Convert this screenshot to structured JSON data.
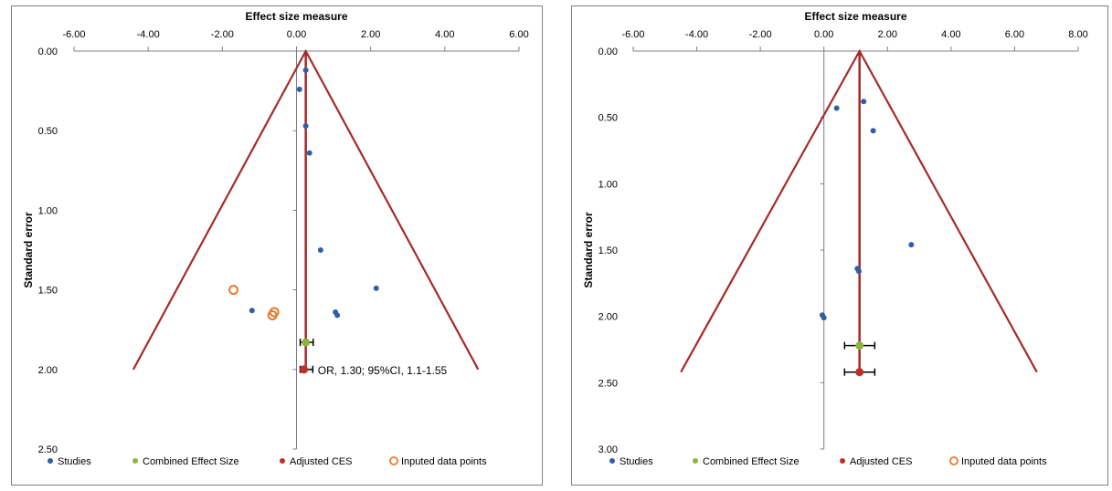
{
  "charts": [
    {
      "chart_data": {
        "type": "scatter",
        "title": "Effect size measure",
        "xlabel": "Effect size measure",
        "ylabel": "Standard error",
        "xlim": [
          -6,
          6
        ],
        "ylim": [
          0,
          2.5
        ],
        "y_reversed": true,
        "x_ticks": [
          "-6.00",
          "-4.00",
          "-2.00",
          "0.00",
          "2.00",
          "4.00",
          "6.00"
        ],
        "x_tick_values": [
          -6,
          -4,
          -2,
          0,
          2,
          4,
          6
        ],
        "y_ticks": [
          "0.00",
          "0.50",
          "1.00",
          "1.50",
          "2.00",
          "2.50"
        ],
        "y_tick_values": [
          0,
          0.5,
          1,
          1.5,
          2,
          2.5
        ],
        "series": [
          {
            "name": "Studies",
            "color": "#2e5fa8",
            "marker": "filled-circle",
            "points": [
              [
                0.25,
                0.12
              ],
              [
                0.08,
                0.24
              ],
              [
                0.25,
                0.47
              ],
              [
                0.35,
                0.64
              ],
              [
                0.65,
                1.25
              ],
              [
                2.15,
                1.49
              ],
              [
                1.05,
                1.64
              ],
              [
                1.1,
                1.66
              ],
              [
                -1.2,
                1.63
              ]
            ]
          },
          {
            "name": "Combined Effect Size",
            "color": "#8db53c",
            "marker": "filled-circle",
            "points": [
              [
                0.25,
                1.83
              ]
            ],
            "ci": [
              [
                0.1,
                0.45
              ]
            ]
          },
          {
            "name": "Adjusted CES",
            "color": "#c0302b",
            "marker": "filled-circle",
            "points": [
              [
                0.2,
                2.0
              ]
            ],
            "ci": [
              [
                0.1,
                0.44
              ]
            ]
          },
          {
            "name": "Inputed data points",
            "color": "#e8792b",
            "marker": "open-circle",
            "points": [
              [
                -1.7,
                1.5
              ],
              [
                -0.6,
                1.64
              ],
              [
                -0.65,
                1.66
              ]
            ]
          }
        ],
        "funnel": {
          "apex": [
            0.25,
            0
          ],
          "base_left": [
            -4.4,
            2.0
          ],
          "base_right": [
            4.9,
            2.0
          ],
          "color": "#a62a2a"
        },
        "vertical_line": {
          "x": 0.25,
          "from": 0,
          "to": 2.0,
          "color": "#a62a2a"
        },
        "legend": [
          "Studies",
          "Combined Effect Size",
          "Adjusted CES",
          "Inputed data points"
        ],
        "legend_position": "bottom",
        "annotation": {
          "text": "OR, 1.30; 95%CI, 1.1-1.55",
          "x": 0.5,
          "y": 2.0
        }
      }
    },
    {
      "chart_data": {
        "type": "scatter",
        "title": "Effect size measure",
        "xlabel": "Effect size measure",
        "ylabel": "Standard error",
        "xlim": [
          -6,
          8
        ],
        "ylim": [
          0,
          3
        ],
        "y_reversed": true,
        "x_ticks": [
          "-6.00",
          "-4.00",
          "-2.00",
          "0.00",
          "2.00",
          "4.00",
          "6.00",
          "8.00"
        ],
        "x_tick_values": [
          -6,
          -4,
          -2,
          0,
          2,
          4,
          6,
          8
        ],
        "y_ticks": [
          "0.00",
          "0.50",
          "1.00",
          "1.50",
          "2.00",
          "2.50",
          "3.00"
        ],
        "y_tick_values": [
          0,
          0.5,
          1,
          1.5,
          2,
          2.5,
          3
        ],
        "series": [
          {
            "name": "Studies",
            "color": "#2e5fa8",
            "marker": "filled-circle",
            "points": [
              [
                1.25,
                0.38
              ],
              [
                0.4,
                0.43
              ],
              [
                1.55,
                0.6
              ],
              [
                2.75,
                1.46
              ],
              [
                1.05,
                1.64
              ],
              [
                1.1,
                1.66
              ],
              [
                -0.05,
                1.99
              ],
              [
                0.0,
                2.01
              ]
            ]
          },
          {
            "name": "Combined Effect Size",
            "color": "#8db53c",
            "marker": "filled-circle",
            "points": [
              [
                1.12,
                2.22
              ]
            ],
            "ci": [
              [
                0.65,
                1.6
              ]
            ]
          },
          {
            "name": "Adjusted CES",
            "color": "#c0302b",
            "marker": "filled-circle",
            "points": [
              [
                1.12,
                2.42
              ]
            ],
            "ci": [
              [
                0.65,
                1.6
              ]
            ]
          },
          {
            "name": "Inputed data points",
            "color": "#e8792b",
            "marker": "open-circle",
            "points": []
          }
        ],
        "funnel": {
          "apex": [
            1.12,
            0
          ],
          "base_left": [
            -4.5,
            2.42
          ],
          "base_right": [
            6.7,
            2.42
          ],
          "color": "#a62a2a"
        },
        "vertical_line": {
          "x": 1.12,
          "from": 0,
          "to": 2.42,
          "color": "#a62a2a"
        },
        "legend": [
          "Studies",
          "Combined Effect Size",
          "Adjusted CES",
          "Inputed data points"
        ],
        "legend_position": "bottom"
      }
    }
  ]
}
